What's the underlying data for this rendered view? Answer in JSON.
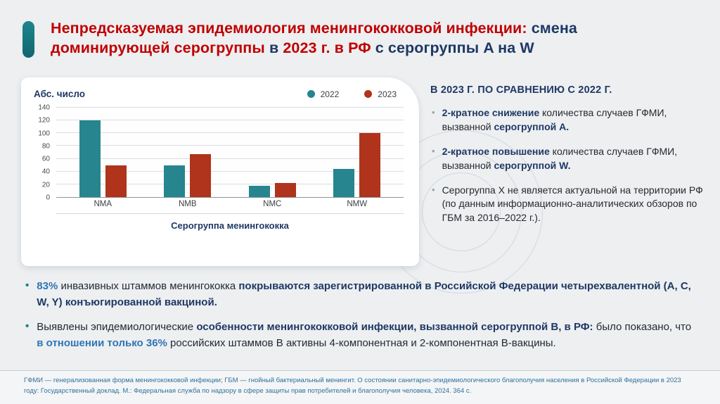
{
  "colors": {
    "accent_teal": "#17808a",
    "title_red": "#c00000",
    "navy": "#1f3864",
    "emphasis_blue": "#2e75b6",
    "bar_2022": "#26858e",
    "bar_2023": "#b0331c"
  },
  "title": {
    "runs": [
      {
        "t": "Непредсказуемая эпидемиология менингококковой инфекции: ",
        "c": "red",
        "b": true
      },
      {
        "t": "смена\n",
        "c": "navy",
        "b": true
      },
      {
        "t": "доминирующей серогруппы ",
        "c": "red",
        "b": true
      },
      {
        "t": "в ",
        "c": "navy",
        "b": true
      },
      {
        "t": "2023 г. в РФ ",
        "c": "red",
        "b": true
      },
      {
        "t": "с серогруппы A на W",
        "c": "navy",
        "b": true
      }
    ]
  },
  "chart_data": {
    "type": "bar",
    "y_title": "Абс. число",
    "x_title": "Серогруппа менингококка",
    "categories": [
      "NMA",
      "NMB",
      "NMC",
      "NMW"
    ],
    "series": [
      {
        "name": "2022",
        "color": "#26858e",
        "values": [
          120,
          50,
          18,
          44
        ]
      },
      {
        "name": "2023",
        "color": "#b0331c",
        "values": [
          50,
          67,
          22,
          100
        ]
      }
    ],
    "ylim": [
      0,
      140
    ],
    "ytick_step": 20,
    "grid": true,
    "legend_position": "top-right"
  },
  "right_panel": {
    "heading": "В 2023 Г. ПО СРАВНЕНИЮ С 2022 Г.",
    "bullets": [
      {
        "runs": [
          {
            "t": "2-кратное снижение",
            "b": true,
            "c": "navy"
          },
          {
            "t": " количества случаев ГФМИ, вызванной ",
            "b": false
          },
          {
            "t": "серогруппой A.",
            "b": true,
            "c": "navy"
          }
        ]
      },
      {
        "runs": [
          {
            "t": "2-кратное повышение",
            "b": true,
            "c": "navy"
          },
          {
            "t": " количества случаев ГФМИ, вызванной ",
            "b": false
          },
          {
            "t": "серогруппой W.",
            "b": true,
            "c": "navy"
          }
        ]
      },
      {
        "runs": [
          {
            "t": "Серогруппа X не является актуальной на территории РФ (по данным информационно-аналитических обзоров по ГБМ за 2016–2022 г.).",
            "b": false
          }
        ]
      }
    ]
  },
  "bottom": {
    "bullets": [
      {
        "runs": [
          {
            "t": "83%",
            "b": true,
            "c": "blue"
          },
          {
            "t": " инвазивных штаммов менингококка ",
            "b": false
          },
          {
            "t": "покрываются зарегистрированной в Российской Федерации четырехвалентной (A, C, W, Y) конъюгированной вакциной.",
            "b": true,
            "c": "navy"
          }
        ]
      },
      {
        "runs": [
          {
            "t": "Выявлены эпидемиологические ",
            "b": false
          },
          {
            "t": "особенности менингококковой инфекции, вызванной серогруппой B, в РФ:",
            "b": true,
            "c": "navy"
          },
          {
            "t": " было показано, что ",
            "b": false
          },
          {
            "t": "в отношении только 36%",
            "b": true,
            "c": "blue"
          },
          {
            "t": " российских штаммов B активны 4-компонентная и 2-компонентная B-вакцины.",
            "b": false
          }
        ]
      }
    ]
  },
  "footer": {
    "text": "ГФМИ — генерализованная форма менингококковой инфекции; ГБМ — гнойный бактериальный менингит. О состоянии санитарно-эпидемиологического благополучия населения в Российской Федерации в 2023 году: Государственный доклад. М.: Федеральная служба по надзору в сфере защиты прав потребителей и благополучия человека, 2024. 364 с."
  }
}
